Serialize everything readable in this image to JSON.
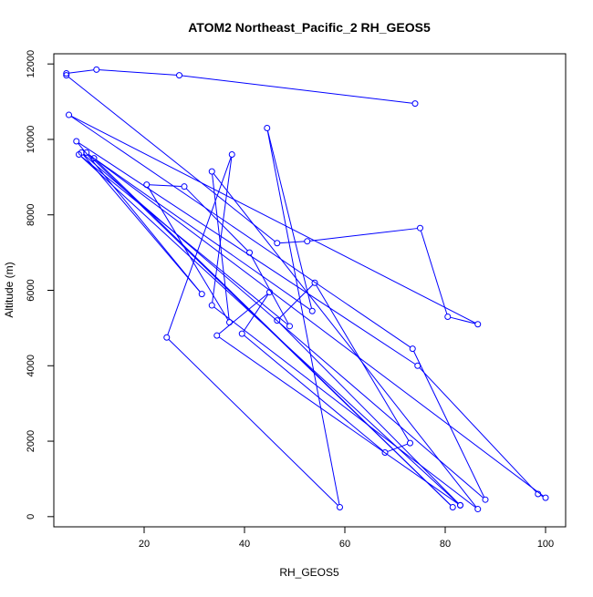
{
  "chart_data": {
    "type": "line",
    "title": "ATOM2 Northeast_Pacific_2 RH_GEOS5",
    "xlabel": "RH_GEOS5",
    "ylabel": "Altitude (m)",
    "xlim": [
      2,
      104
    ],
    "ylim": [
      -270,
      12270
    ],
    "x_ticks": [
      20,
      40,
      60,
      80,
      100
    ],
    "y_ticks": [
      0,
      2000,
      4000,
      6000,
      8000,
      10000,
      12000
    ],
    "grid": false,
    "marker": "open-circle",
    "color": "#0000ff",
    "series": [
      {
        "points": [
          [
            4.5,
            11750
          ],
          [
            10.5,
            11850
          ],
          [
            27,
            11700
          ],
          [
            74,
            10950
          ]
        ]
      },
      {
        "points": [
          [
            4.5,
            11700
          ],
          [
            46.5,
            7250
          ],
          [
            52.5,
            7300
          ],
          [
            75,
            7650
          ],
          [
            80.5,
            5300
          ],
          [
            86.5,
            5100
          ],
          [
            5,
            10650
          ],
          [
            73.5,
            4450
          ],
          [
            88,
            450
          ],
          [
            7.5,
            9650
          ],
          [
            31.5,
            5900
          ],
          [
            6.5,
            9950
          ],
          [
            74.5,
            4000
          ],
          [
            98.5,
            600
          ],
          [
            100,
            500
          ],
          [
            8.5,
            9650
          ],
          [
            81.5,
            250
          ],
          [
            10,
            9500
          ],
          [
            53.5,
            5450
          ],
          [
            44.5,
            10300
          ],
          [
            59,
            250
          ],
          [
            24.5,
            4750
          ],
          [
            37.5,
            9600
          ],
          [
            33.5,
            5600
          ],
          [
            86.5,
            200
          ],
          [
            33.5,
            9150
          ],
          [
            37,
            5150
          ],
          [
            20.5,
            8800
          ],
          [
            28,
            8750
          ],
          [
            41,
            7000
          ],
          [
            49,
            5050
          ],
          [
            7,
            9600
          ],
          [
            83,
            300
          ],
          [
            34.5,
            4800
          ],
          [
            45,
            5950
          ],
          [
            39.5,
            4850
          ],
          [
            68,
            1700
          ],
          [
            73,
            1950
          ],
          [
            54,
            6200
          ],
          [
            46.5,
            5200
          ],
          [
            83,
            300
          ]
        ]
      }
    ]
  }
}
